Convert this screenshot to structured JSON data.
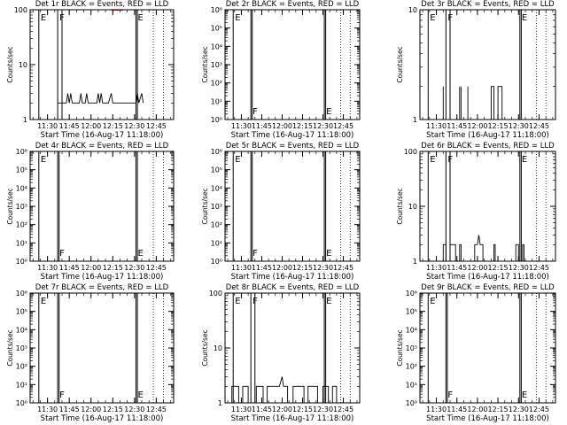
{
  "window": {
    "xlabel": "Start Time (16-Aug-17 11:18:00)",
    "ylabel": "Counts/sec",
    "x_ticks": [
      "11:30",
      "11:45",
      "12:00",
      "12:15",
      "12:30",
      "12:45"
    ],
    "colors": {
      "events": "#000000",
      "lld": "#ff0000",
      "background": "#ffffff"
    }
  },
  "chart_data": [
    {
      "type": "line",
      "title": "Det 1r BLACK = Events, RED = LLD",
      "ylog": true,
      "ylim": [
        1,
        100
      ],
      "y_tick_labels": [
        "1",
        "10",
        "100"
      ],
      "xlim": [
        "11:18",
        "12:57"
      ],
      "markers": [
        {
          "time": "11:24",
          "label": "E",
          "style": "solid"
        },
        {
          "time": "11:37",
          "label": "F",
          "style": "solid"
        },
        {
          "time": "11:40",
          "label": "",
          "style": "solid"
        },
        {
          "time": "12:31",
          "label": "E",
          "style": "solid"
        },
        {
          "time": "12:32",
          "label": "",
          "style": "solid"
        },
        {
          "time": "12:43",
          "label": "",
          "style": "dotted"
        },
        {
          "time": "12:50",
          "label": "",
          "style": "dotted"
        }
      ],
      "series": [
        {
          "color": "#000000",
          "points": [
            [
              "11:37",
              2
            ],
            [
              "11:40",
              2
            ],
            [
              "11:41",
              2
            ],
            [
              "11:43",
              2
            ],
            [
              "11:44",
              3
            ],
            [
              "11:45",
              2
            ],
            [
              "11:46",
              3
            ],
            [
              "11:47",
              2
            ],
            [
              "11:52",
              2
            ],
            [
              "11:53",
              3
            ],
            [
              "11:54",
              2
            ],
            [
              "11:56",
              2
            ],
            [
              "11:57",
              3
            ],
            [
              "11:58",
              2
            ],
            [
              "12:04",
              2
            ],
            [
              "12:05",
              3
            ],
            [
              "12:06",
              2
            ],
            [
              "12:07",
              3
            ],
            [
              "12:08",
              2
            ],
            [
              "12:10",
              2
            ],
            [
              "12:12",
              2
            ],
            [
              "12:14",
              3
            ],
            [
              "12:15",
              2
            ],
            [
              "12:18",
              2
            ],
            [
              "12:20",
              2
            ],
            [
              "12:23",
              2
            ],
            [
              "12:25",
              2
            ],
            [
              "12:28",
              2
            ],
            [
              "12:31",
              2
            ],
            [
              "12:32",
              3
            ],
            [
              "12:33",
              2
            ],
            [
              "12:35",
              3
            ],
            [
              "12:36",
              2
            ]
          ]
        },
        {
          "color": "#ff0000",
          "points": [
            [
              "12:14",
              100
            ],
            [
              "12:22",
              100
            ]
          ]
        }
      ]
    },
    {
      "type": "line",
      "title": "Det 2r BLACK = Events, RED = LLD",
      "ylog": true,
      "ylim": [
        1,
        1000000
      ],
      "y_tick_labels": [
        "10⁰",
        "10¹",
        "10²",
        "10³",
        "10⁴",
        "10⁵",
        "10⁶"
      ],
      "xlim": [
        "11:18",
        "12:57"
      ],
      "markers": [
        {
          "time": "11:24",
          "label": "E",
          "style": "solid"
        },
        {
          "time": "11:37",
          "label": "F",
          "style": "solid"
        },
        {
          "time": "11:38",
          "label": "",
          "style": "solid"
        },
        {
          "time": "12:31",
          "label": "E",
          "style": "solid"
        },
        {
          "time": "12:32",
          "label": "",
          "style": "solid"
        },
        {
          "time": "12:43",
          "label": "",
          "style": "dotted"
        },
        {
          "time": "12:50",
          "label": "",
          "style": "dotted"
        }
      ],
      "series": []
    },
    {
      "type": "line",
      "title": "Det 3r BLACK = Events, RED = LLD",
      "ylog": true,
      "ylim": [
        1,
        10
      ],
      "y_tick_labels": [
        "1",
        "10"
      ],
      "xlim": [
        "11:18",
        "12:57"
      ],
      "markers": [
        {
          "time": "11:24",
          "label": "E",
          "style": "solid"
        },
        {
          "time": "11:37",
          "label": "F",
          "style": "solid"
        },
        {
          "time": "11:40",
          "label": "",
          "style": "solid"
        },
        {
          "time": "12:31",
          "label": "E",
          "style": "solid"
        },
        {
          "time": "12:32",
          "label": "",
          "style": "solid"
        },
        {
          "time": "12:43",
          "label": "",
          "style": "dotted"
        },
        {
          "time": "12:50",
          "label": "",
          "style": "dotted"
        }
      ],
      "series": [
        {
          "color": "#000000",
          "points": [
            [
              "11:35",
              1
            ],
            [
              "11:35",
              2
            ],
            [
              "11:35",
              1
            ],
            [
              "11:47",
              1
            ],
            [
              "11:47",
              2
            ],
            [
              "11:47",
              1
            ],
            [
              "11:48",
              1
            ],
            [
              "11:48",
              2
            ],
            [
              "11:48",
              1
            ],
            [
              "11:53",
              1
            ],
            [
              "11:53",
              2
            ],
            [
              "11:53",
              1
            ],
            [
              "12:10",
              1
            ],
            [
              "12:10",
              2
            ],
            [
              "12:12",
              2
            ],
            [
              "12:12",
              1
            ],
            [
              "12:15",
              1
            ],
            [
              "12:15",
              2
            ],
            [
              "12:18",
              2
            ],
            [
              "12:18",
              1
            ]
          ]
        }
      ]
    },
    {
      "type": "line",
      "title": "Det 4r BLACK = Events, RED = LLD",
      "ylog": true,
      "ylim": [
        1,
        1000000
      ],
      "y_tick_labels": [
        "10⁰",
        "10¹",
        "10²",
        "10³",
        "10⁴",
        "10⁵",
        "10⁶"
      ],
      "xlim": [
        "11:18",
        "12:57"
      ],
      "markers": [
        {
          "time": "11:24",
          "label": "E",
          "style": "solid"
        },
        {
          "time": "11:37",
          "label": "F",
          "style": "solid"
        },
        {
          "time": "11:38",
          "label": "",
          "style": "solid"
        },
        {
          "time": "12:31",
          "label": "E",
          "style": "solid"
        },
        {
          "time": "12:32",
          "label": "",
          "style": "solid"
        },
        {
          "time": "12:43",
          "label": "",
          "style": "dotted"
        },
        {
          "time": "12:50",
          "label": "",
          "style": "dotted"
        }
      ],
      "series": []
    },
    {
      "type": "line",
      "title": "Det 5r BLACK = Events, RED = LLD",
      "ylog": true,
      "ylim": [
        1,
        1000000
      ],
      "y_tick_labels": [
        "10⁰",
        "10¹",
        "10²",
        "10³",
        "10⁴",
        "10⁵",
        "10⁶"
      ],
      "xlim": [
        "11:18",
        "12:57"
      ],
      "markers": [
        {
          "time": "11:24",
          "label": "E",
          "style": "solid"
        },
        {
          "time": "11:37",
          "label": "F",
          "style": "solid"
        },
        {
          "time": "11:38",
          "label": "",
          "style": "solid"
        },
        {
          "time": "12:31",
          "label": "E",
          "style": "solid"
        },
        {
          "time": "12:32",
          "label": "",
          "style": "solid"
        },
        {
          "time": "12:43",
          "label": "",
          "style": "dotted"
        },
        {
          "time": "12:50",
          "label": "",
          "style": "dotted"
        }
      ],
      "series": []
    },
    {
      "type": "line",
      "title": "Det 6r BLACK = Events, RED = LLD",
      "ylog": true,
      "ylim": [
        1,
        100
      ],
      "y_tick_labels": [
        "1",
        "10",
        "100"
      ],
      "xlim": [
        "11:18",
        "12:57"
      ],
      "markers": [
        {
          "time": "11:24",
          "label": "E",
          "style": "solid"
        },
        {
          "time": "11:37",
          "label": "F",
          "style": "solid"
        },
        {
          "time": "11:40",
          "label": "",
          "style": "solid"
        },
        {
          "time": "12:31",
          "label": "E",
          "style": "solid"
        },
        {
          "time": "12:32",
          "label": "",
          "style": "solid"
        },
        {
          "time": "12:43",
          "label": "",
          "style": "dotted"
        },
        {
          "time": "12:50",
          "label": "",
          "style": "dotted"
        }
      ],
      "series": [
        {
          "color": "#000000",
          "points": [
            [
              "11:35",
              1
            ],
            [
              "11:35",
              2
            ],
            [
              "11:37",
              2
            ],
            [
              "11:37",
              1
            ],
            [
              "11:40",
              1
            ],
            [
              "11:40",
              2
            ],
            [
              "11:44",
              2
            ],
            [
              "11:44",
              1
            ],
            [
              "11:47",
              1
            ],
            [
              "11:47",
              2
            ],
            [
              "11:48",
              2
            ],
            [
              "11:48",
              1
            ],
            [
              "11:58",
              1
            ],
            [
              "11:58",
              2
            ],
            [
              "12:00",
              2
            ],
            [
              "12:01",
              3
            ],
            [
              "12:02",
              2
            ],
            [
              "12:04",
              2
            ],
            [
              "12:04",
              1
            ],
            [
              "12:12",
              1
            ],
            [
              "12:12",
              2
            ],
            [
              "12:13",
              2
            ],
            [
              "12:13",
              1
            ],
            [
              "12:28",
              1
            ],
            [
              "12:28",
              2
            ],
            [
              "12:30",
              2
            ],
            [
              "12:30",
              1
            ],
            [
              "12:33",
              1
            ],
            [
              "12:33",
              2
            ],
            [
              "12:34",
              2
            ],
            [
              "12:34",
              1
            ]
          ]
        }
      ]
    },
    {
      "type": "line",
      "title": "Det 7r BLACK = Events, RED = LLD",
      "ylog": true,
      "ylim": [
        1,
        1000000
      ],
      "y_tick_labels": [
        "10⁰",
        "10¹",
        "10²",
        "10³",
        "10⁴",
        "10⁵",
        "10⁶"
      ],
      "xlim": [
        "11:18",
        "12:57"
      ],
      "markers": [
        {
          "time": "11:24",
          "label": "E",
          "style": "solid"
        },
        {
          "time": "11:37",
          "label": "F",
          "style": "solid"
        },
        {
          "time": "11:38",
          "label": "",
          "style": "solid"
        },
        {
          "time": "12:31",
          "label": "E",
          "style": "solid"
        },
        {
          "time": "12:32",
          "label": "",
          "style": "solid"
        },
        {
          "time": "12:43",
          "label": "",
          "style": "dotted"
        },
        {
          "time": "12:50",
          "label": "",
          "style": "dotted"
        }
      ],
      "series": []
    },
    {
      "type": "line",
      "title": "Det 8r BLACK = Events, RED = LLD",
      "ylog": true,
      "ylim": [
        1,
        100
      ],
      "y_tick_labels": [
        "1",
        "10",
        "100"
      ],
      "xlim": [
        "11:18",
        "12:57"
      ],
      "markers": [
        {
          "time": "11:24",
          "label": "E",
          "style": "solid"
        },
        {
          "time": "11:37",
          "label": "F",
          "style": "solid"
        },
        {
          "time": "11:40",
          "label": "",
          "style": "solid"
        },
        {
          "time": "12:31",
          "label": "E",
          "style": "solid"
        },
        {
          "time": "12:32",
          "label": "",
          "style": "solid"
        },
        {
          "time": "12:43",
          "label": "",
          "style": "dotted"
        },
        {
          "time": "12:50",
          "label": "",
          "style": "dotted"
        }
      ],
      "series": [
        {
          "color": "#000000",
          "points": [
            [
              "11:23",
              1
            ],
            [
              "11:23",
              2
            ],
            [
              "11:28",
              2
            ],
            [
              "11:28",
              1
            ],
            [
              "11:31",
              1
            ],
            [
              "11:31",
              2
            ],
            [
              "11:35",
              2
            ],
            [
              "11:35",
              1
            ],
            [
              "11:41",
              1
            ],
            [
              "11:41",
              2
            ],
            [
              "11:46",
              2
            ],
            [
              "11:46",
              1
            ],
            [
              "11:49",
              1
            ],
            [
              "11:49",
              2
            ],
            [
              "11:58",
              2
            ],
            [
              "12:00",
              3
            ],
            [
              "12:01",
              2
            ],
            [
              "12:04",
              2
            ],
            [
              "12:04",
              1
            ],
            [
              "12:08",
              1
            ],
            [
              "12:08",
              2
            ],
            [
              "12:16",
              2
            ],
            [
              "12:16",
              1
            ],
            [
              "12:19",
              1
            ],
            [
              "12:19",
              2
            ],
            [
              "12:26",
              2
            ],
            [
              "12:26",
              1
            ],
            [
              "12:30",
              1
            ],
            [
              "12:30",
              2
            ],
            [
              "12:34",
              2
            ],
            [
              "12:34",
              1
            ],
            [
              "12:37",
              1
            ],
            [
              "12:37",
              2
            ],
            [
              "12:40",
              2
            ],
            [
              "12:40",
              1
            ]
          ]
        }
      ]
    },
    {
      "type": "line",
      "title": "Det 9r BLACK = Events, RED = LLD",
      "ylog": true,
      "ylim": [
        1,
        1000000
      ],
      "y_tick_labels": [
        "10⁰",
        "10¹",
        "10²",
        "10³",
        "10⁴",
        "10⁵",
        "10⁶"
      ],
      "xlim": [
        "11:18",
        "12:57"
      ],
      "markers": [
        {
          "time": "11:24",
          "label": "E",
          "style": "solid"
        },
        {
          "time": "11:37",
          "label": "F",
          "style": "solid"
        },
        {
          "time": "11:38",
          "label": "",
          "style": "solid"
        },
        {
          "time": "12:31",
          "label": "E",
          "style": "solid"
        },
        {
          "time": "12:32",
          "label": "",
          "style": "solid"
        },
        {
          "time": "12:43",
          "label": "",
          "style": "dotted"
        },
        {
          "time": "12:50",
          "label": "",
          "style": "dotted"
        }
      ],
      "series": []
    }
  ]
}
